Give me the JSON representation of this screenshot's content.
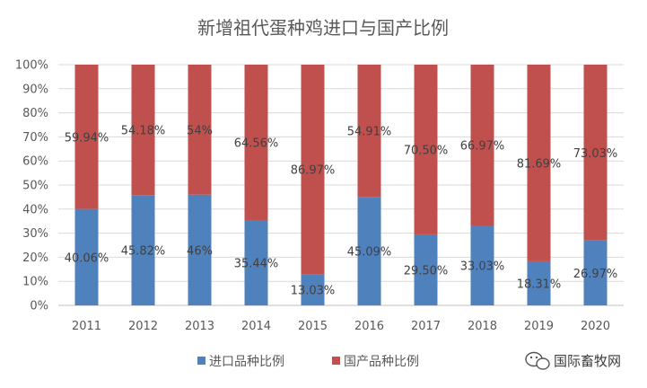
{
  "chart_data": {
    "type": "bar",
    "stacked": true,
    "percent": true,
    "title": "新增祖代蛋种鸡进口与国产比例",
    "categories": [
      "2011",
      "2012",
      "2013",
      "2014",
      "2015",
      "2016",
      "2017",
      "2018",
      "2019",
      "2020"
    ],
    "series": [
      {
        "name": "进口品种比例",
        "color": "#4F81BD",
        "values": [
          40.06,
          45.82,
          46,
          35.44,
          13.03,
          45.09,
          29.5,
          33.03,
          18.31,
          26.97
        ],
        "labels": [
          "40.06%",
          "45.82%",
          "46%",
          "35.44%",
          "13.03%",
          "45.09%",
          "29.50%",
          "33.03%",
          "18.31%",
          "26.97%"
        ]
      },
      {
        "name": "国产品种比例",
        "color": "#C0504D",
        "values": [
          59.94,
          54.18,
          54,
          64.56,
          86.97,
          54.91,
          70.5,
          66.97,
          81.69,
          73.03
        ],
        "labels": [
          "59.94%",
          "54.18%",
          "54%",
          "64.56%",
          "86.97%",
          "54.91%",
          "70.50%",
          "66.97%",
          "81.69%",
          "73.03%"
        ]
      }
    ],
    "y_ticks": [
      "0%",
      "10%",
      "20%",
      "30%",
      "40%",
      "50%",
      "60%",
      "70%",
      "80%",
      "90%",
      "100%"
    ],
    "ylim": [
      0,
      100
    ],
    "grid": true,
    "legend_position": "bottom"
  },
  "watermark": {
    "text": "国际畜牧网",
    "icon": "wechat-icon"
  }
}
